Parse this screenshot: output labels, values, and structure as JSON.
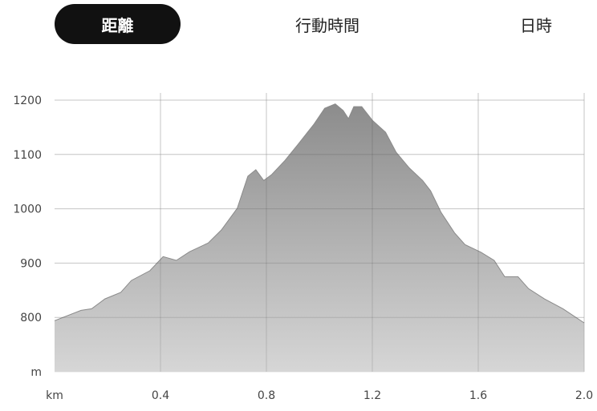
{
  "tabs": [
    {
      "label": "距離",
      "selected": true
    },
    {
      "label": "行動時間",
      "selected": false
    },
    {
      "label": "日時",
      "selected": false
    }
  ],
  "colors": {
    "tab_selected_bg": "#111111",
    "tab_selected_text": "#ffffff",
    "area_top": "#8c8c8c",
    "area_bottom": "#d6d6d6",
    "grid": "#e2e2e2",
    "grid_over_area": "rgba(0,0,0,0.13)"
  },
  "chart_data": {
    "type": "area",
    "x_unit": "km",
    "y_unit": "m",
    "xlim": [
      0,
      2.0
    ],
    "ylim": [
      700,
      1200
    ],
    "x_ticks": [
      0.4,
      0.8,
      1.2,
      1.6,
      2.0
    ],
    "x_tick_labels": [
      "0.4",
      "0.8",
      "1.2",
      "1.6",
      "2.0"
    ],
    "y_ticks": [
      800,
      900,
      1000,
      1100,
      1200
    ],
    "y_tick_labels": [
      "800",
      "900",
      "1000",
      "1100",
      "1200"
    ],
    "grid": true,
    "series": [
      {
        "x": [
          0,
          0.1,
          0.14,
          0.19,
          0.25,
          0.29,
          0.36,
          0.41,
          0.46,
          0.51,
          0.58,
          0.63,
          0.69,
          0.73,
          0.76,
          0.79,
          0.82,
          0.87,
          0.92,
          0.98,
          1.02,
          1.06,
          1.09,
          1.11,
          1.13,
          1.16,
          1.2,
          1.25,
          1.29,
          1.34,
          1.39,
          1.42,
          1.46,
          1.51,
          1.55,
          1.61,
          1.66,
          1.7,
          1.75,
          1.79,
          1.85,
          1.92,
          2.0
        ],
        "y": [
          794,
          813,
          816,
          834,
          846,
          868,
          886,
          912,
          905,
          921,
          937,
          961,
          1001,
          1060,
          1072,
          1052,
          1063,
          1089,
          1119,
          1156,
          1185,
          1193,
          1181,
          1166,
          1188,
          1188,
          1163,
          1141,
          1104,
          1075,
          1052,
          1033,
          993,
          956,
          934,
          920,
          905,
          875,
          875,
          853,
          834,
          816,
          790
        ]
      }
    ]
  }
}
